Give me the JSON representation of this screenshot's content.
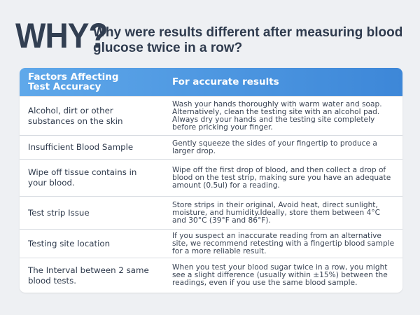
{
  "header": {
    "badge": "WHY?",
    "title": "Why were results different after measuring blood glucose twice in a row?"
  },
  "table": {
    "columns": [
      "Factors Affecting Test Accuracy",
      "For accurate results"
    ],
    "rows": [
      [
        "Alcohol, dirt or other substances on the skin",
        "Wash your hands thoroughly with warm water and soap. Alternatively, clean the testing site with an alcohol pad. Always dry your hands and the testing site completely before pricking your finger."
      ],
      [
        "Insufficient Blood Sample",
        "Gently squeeze the sides of your fingertip to produce a larger drop."
      ],
      [
        "Wipe off tissue contains in your blood.",
        "Wipe off the first drop of blood, and then collect a drop of blood on the test strip, making sure you have an adequate amount (0.5ul) for a reading."
      ],
      [
        "Test strip Issue",
        "Store strips in their original, Avoid heat, direct sunlight, moisture, and humidity.Ideally, store them between 4°C and 30°C (39°F and 86°F)."
      ],
      [
        "Testing site location",
        "If you suspect an inaccurate reading from an alternative site, we recommend retesting with a fingertip blood sample for a more reliable result."
      ],
      [
        "The Interval between 2 same blood tests.",
        "When you test your blood sugar twice in a row, you might see a slight difference (usually within ±15%) between the readings, even if you use the same blood sample."
      ]
    ]
  }
}
